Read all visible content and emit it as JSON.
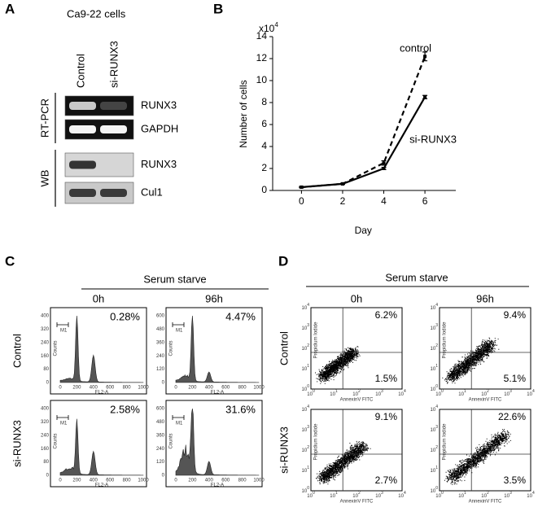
{
  "panel_a": {
    "letter": "A",
    "cell_line": "Ca9-22 cells",
    "lanes": [
      "Control",
      "si-RUNX3"
    ],
    "groups": [
      {
        "label": "RT-PCR",
        "rows": [
          "RUNX3",
          "GAPDH"
        ]
      },
      {
        "label": "WB",
        "rows": [
          "RUNX3",
          "Cul1"
        ]
      }
    ]
  },
  "chart_data": {
    "type": "line",
    "letter": "B",
    "y_multiplier": {
      "base": "x10",
      "exp": "4"
    },
    "ylabel": "Number of cells",
    "xlabel": "Day",
    "x": [
      0,
      2,
      4,
      6
    ],
    "series": [
      {
        "name": "control",
        "color": "#000000",
        "dashed": true,
        "values": [
          0.3,
          0.6,
          2.5,
          12.2
        ],
        "errors": [
          0.05,
          0.05,
          0.2,
          0.4
        ]
      },
      {
        "name": "si-RUNX3",
        "color": "#000000",
        "dashed": false,
        "values": [
          0.3,
          0.6,
          2.0,
          8.5
        ],
        "errors": [
          0.05,
          0.05,
          0.1,
          0.15
        ]
      }
    ],
    "xlim": [
      -1.4,
      7.5
    ],
    "ylim": [
      0,
      14
    ],
    "xticks": [
      0,
      2,
      4,
      6
    ],
    "yticks": [
      0,
      2,
      4,
      6,
      8,
      10,
      12,
      14
    ]
  },
  "panel_c": {
    "letter": "C",
    "condition": "Serum starve",
    "timepoints": [
      "0h",
      "96h"
    ],
    "rows": [
      {
        "label": "Control",
        "percents": [
          "0.28%",
          "4.47%"
        ]
      },
      {
        "label": "si-RUNX3",
        "percents": [
          "2.58%",
          "31.6%"
        ]
      }
    ],
    "xlabel": "FL2-A",
    "ylabel": "Counts",
    "gate": "M1",
    "xticks": [
      "0",
      "200",
      "400",
      "600",
      "800",
      "1000"
    ],
    "yticks": [
      [
        "0",
        "80",
        "160",
        "240",
        "320",
        "400"
      ],
      [
        "0",
        "120",
        "240",
        "360",
        "480",
        "600"
      ]
    ]
  },
  "panel_d": {
    "letter": "D",
    "condition": "Serum starve",
    "timepoints": [
      "0h",
      "96h"
    ],
    "rows": [
      {
        "label": "Control",
        "percents": [
          [
            "6.2%",
            "1.5%"
          ],
          [
            "9.4%",
            "5.1%"
          ]
        ]
      },
      {
        "label": "si-RUNX3",
        "percents": [
          [
            "9.1%",
            "2.7%"
          ],
          [
            "22.6%",
            "3.5%"
          ]
        ]
      }
    ],
    "xlabel": "AnnexinV FITC",
    "ylabel": "Propidium Iodide",
    "tick_base": "10",
    "tick_exps": [
      "0",
      "1",
      "2",
      "3",
      "4"
    ]
  }
}
